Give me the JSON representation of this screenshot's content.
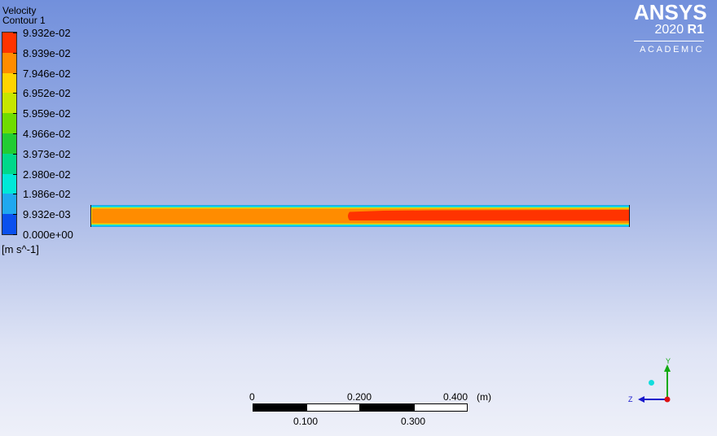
{
  "legend": {
    "title_line1": "Velocity",
    "title_line2": "Contour 1",
    "labels": [
      "9.932e-02",
      "8.939e-02",
      "7.946e-02",
      "6.952e-02",
      "5.959e-02",
      "4.966e-02",
      "3.973e-02",
      "2.980e-02",
      "1.986e-02",
      "9.932e-03",
      "0.000e+00"
    ],
    "unit": "[m s^-1]",
    "colors": [
      "#ff3300",
      "#ff8c00",
      "#ffd400",
      "#c6e600",
      "#6fdc00",
      "#22cc33",
      "#00d88a",
      "#00e8d8",
      "#1fa8f0",
      "#0a50ee"
    ]
  },
  "logo": {
    "name": "ANSYS",
    "version": "2020",
    "release": "R1",
    "edition": "ACADEMIC"
  },
  "scale_bar": {
    "top_labels": [
      "0",
      "0.200",
      "0.400"
    ],
    "unit": "(m)",
    "bottom_labels": [
      "0.100",
      "0.300"
    ]
  },
  "axes": {
    "y_label": "Y",
    "z_label": "Z"
  }
}
